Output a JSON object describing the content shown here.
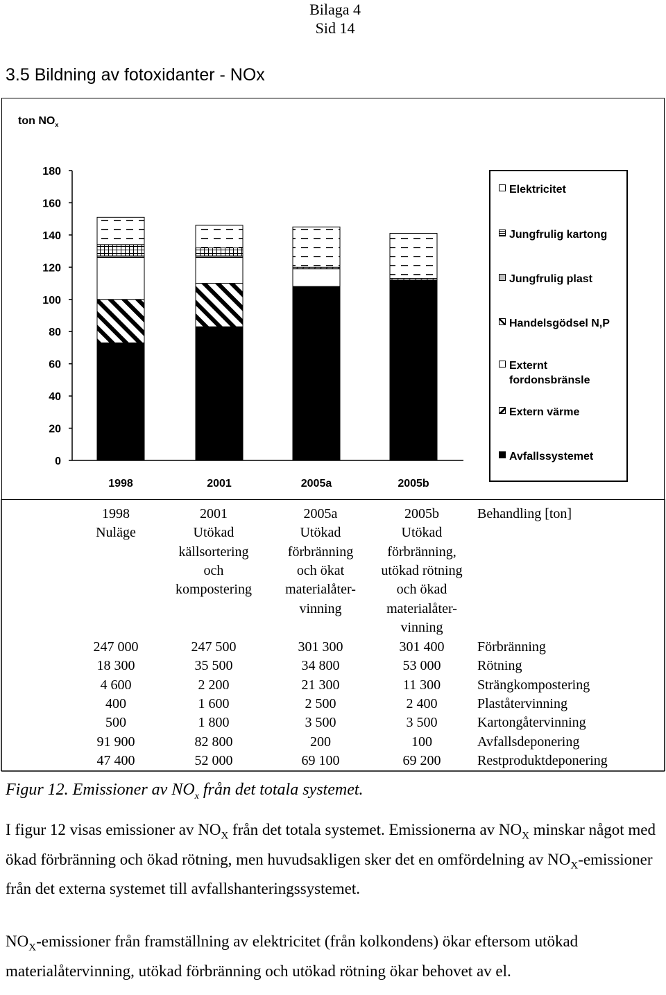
{
  "header": {
    "line1": "Bilaga 4",
    "line2": "Sid 14"
  },
  "section_title": "3.5 Bildning av fotoxidanter - NOx",
  "chart": {
    "y_unit_main": "ton NO",
    "y_unit_sub": "x"
  },
  "chart_data": {
    "type": "bar",
    "stacked": true,
    "categories": [
      "1998",
      "2001",
      "2005a",
      "2005b"
    ],
    "ylim": [
      0,
      180
    ],
    "yticks": [
      0,
      20,
      40,
      60,
      80,
      100,
      120,
      140,
      160,
      180
    ],
    "grid": false,
    "legend_position": "right",
    "series": [
      {
        "name": "Avfallssystemet",
        "values": [
          73,
          83,
          108,
          112
        ],
        "pattern": "solid-black"
      },
      {
        "name": "Extern värme",
        "values": [
          27,
          27,
          0,
          0
        ],
        "pattern": "diagonal-hatch"
      },
      {
        "name": "Externt fordonsbränsle",
        "values": [
          26,
          16,
          11,
          0
        ],
        "pattern": "white"
      },
      {
        "name": "Handelsgödsel N,P",
        "values": [
          0,
          0,
          1,
          1
        ],
        "pattern": "diagonal-light"
      },
      {
        "name": "Jungfrulig plast",
        "values": [
          1,
          1,
          0,
          0
        ],
        "pattern": "light-gray"
      },
      {
        "name": "Jungfrulig kartong",
        "values": [
          7,
          5,
          0,
          0
        ],
        "pattern": "grid"
      },
      {
        "name": "Elektricitet",
        "values": [
          17,
          14,
          25,
          28
        ],
        "pattern": "dashes"
      }
    ]
  },
  "legend": {
    "items": [
      {
        "label": "Elektricitet",
        "pattern": "dashes"
      },
      {
        "label": "Jungfrulig kartong",
        "pattern": "grid"
      },
      {
        "label": "Jungfrulig plast",
        "pattern": "light-gray"
      },
      {
        "label": "Handelsgödsel N,P",
        "pattern": "diagonal-light"
      },
      {
        "label": "Externt fordonsbränsle",
        "pattern": "white"
      },
      {
        "label": "Extern värme",
        "pattern": "diagonal-hatch"
      },
      {
        "label": "Avfallssystemet",
        "pattern": "solid-black"
      }
    ]
  },
  "table": {
    "scenarios": [
      {
        "lines": [
          "1998",
          "Nuläge"
        ]
      },
      {
        "lines": [
          "2001",
          "Utökad",
          "källsortering",
          "och",
          "kompostering"
        ]
      },
      {
        "lines": [
          "2005a",
          "Utökad",
          "förbränning",
          "och ökat",
          "materialåter-",
          "vinning"
        ]
      },
      {
        "lines": [
          "2005b",
          "Utökad",
          "förbränning,",
          "utökad rötning",
          "och ökad",
          "materialåter-",
          "vinning"
        ]
      }
    ],
    "row_header_title": "Behandling [ton]",
    "rows": [
      {
        "values": [
          "247 000",
          "247 500",
          "301 300",
          "301 400"
        ],
        "label": "Förbränning"
      },
      {
        "values": [
          "18 300",
          "35 500",
          "34 800",
          "53 000"
        ],
        "label": "Rötning"
      },
      {
        "values": [
          "4 600",
          "2 200",
          "21 300",
          "11 300"
        ],
        "label": "Strängkompostering"
      },
      {
        "values": [
          "400",
          "1 600",
          "2 500",
          "2 400"
        ],
        "label": "Plaståtervinning"
      },
      {
        "values": [
          "500",
          "1 800",
          "3 500",
          "3 500"
        ],
        "label": "Kartongåtervinning"
      },
      {
        "values": [
          "91 900",
          "82 800",
          "200",
          "100"
        ],
        "label": "Avfallsdeponering"
      },
      {
        "values": [
          "47 400",
          "52 000",
          "69 100",
          "69 200"
        ],
        "label": "Restproduktdeponering"
      }
    ]
  },
  "caption": {
    "before": "Figur 12. Emissioner av NO",
    "sub": "x",
    "after": " från det totala systemet."
  },
  "paragraphs": {
    "p1": {
      "a": "I figur 12 visas emissioner av NO",
      "a_sub": "X",
      "b": " från det totala systemet. Emissionerna av NO",
      "b_sub": "X",
      "c": " minskar något med ökad förbränning och ökad rötning, men huvudsakligen sker det en omfördelning av NO",
      "c_sub": "X",
      "d": "-emissioner från det externa systemet till avfallshanteringssystemet."
    },
    "p2": {
      "a": "NO",
      "a_sub": "X",
      "b": "-emissioner från framställning av elektricitet (från kolkondens) ökar eftersom utökad materialåtervinning, utökad förbränning och utökad rötning ökar behovet av el."
    }
  }
}
